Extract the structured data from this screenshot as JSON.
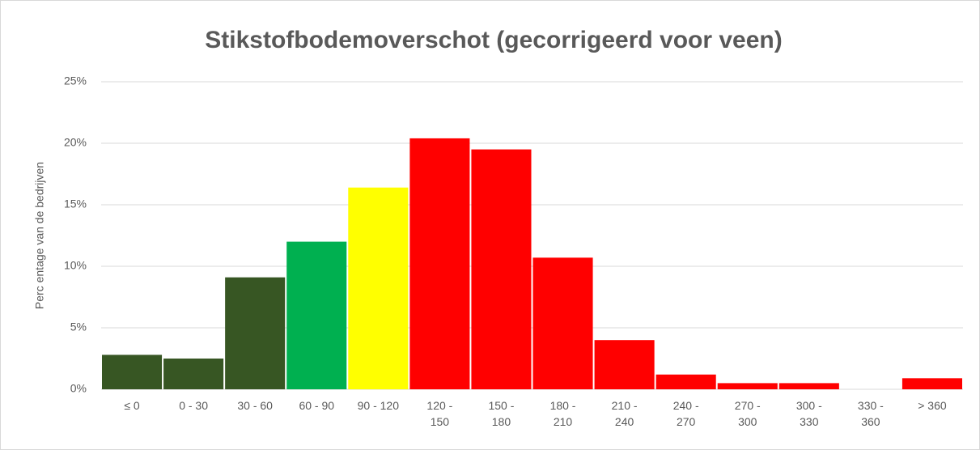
{
  "chart_data": {
    "type": "bar",
    "title": "Stikstofbodemoverschot (gecorrigeerd voor veen)",
    "y_label": "Perc entage van de bedrijven",
    "categories": [
      "≤ 0",
      "0 - 30",
      "30 - 60",
      "60 - 90",
      "90 - 120",
      "120 -\n150",
      "150 -\n180",
      "180 -\n210",
      "210 -\n240",
      "240 -\n270",
      "270 -\n300",
      "300 -\n330",
      "330 -\n360",
      "> 360"
    ],
    "values": [
      2.8,
      2.5,
      9.1,
      12.0,
      16.4,
      20.4,
      19.5,
      10.7,
      4.0,
      1.2,
      0.5,
      0.5,
      0,
      0.9
    ],
    "colors": [
      "#375623",
      "#375623",
      "#375623",
      "#00b050",
      "#ffff00",
      "#ff0000",
      "#ff0000",
      "#ff0000",
      "#ff0000",
      "#ff0000",
      "#ff0000",
      "#ff0000",
      "#ff0000",
      "#ff0000"
    ],
    "ylim": [
      0,
      25
    ],
    "yticks": [
      {
        "value": 0,
        "label": "0%"
      },
      {
        "value": 5,
        "label": "5%"
      },
      {
        "value": 10,
        "label": "10%"
      },
      {
        "value": 15,
        "label": "15%"
      },
      {
        "value": 20,
        "label": "20%"
      },
      {
        "value": 25,
        "label": "25%"
      }
    ],
    "grid": true
  }
}
